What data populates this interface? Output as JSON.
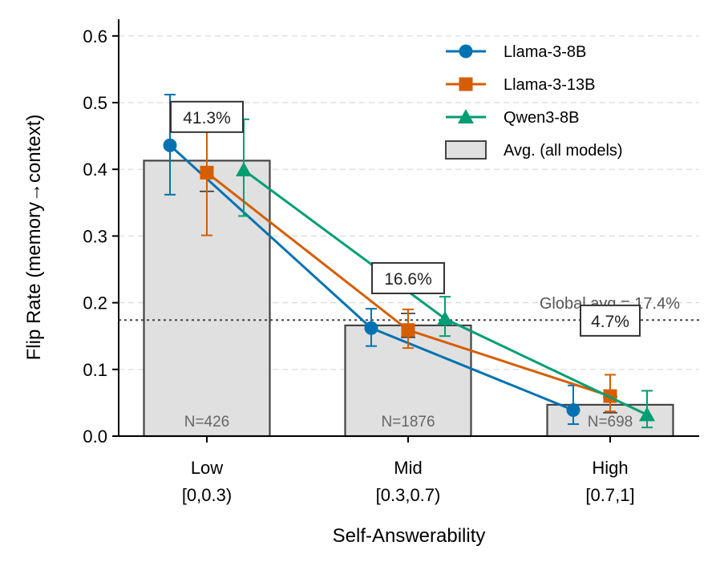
{
  "chart_data": {
    "type": "bar",
    "xlabel": "Self-Answerability",
    "ylabel": "Flip Rate (memory→context)",
    "ylim": [
      0,
      0.625
    ],
    "yticks": [
      "0.0",
      "0.1",
      "0.2",
      "0.3",
      "0.4",
      "0.5",
      "0.6"
    ],
    "yticks_values": [
      0,
      0.1,
      0.2,
      0.3,
      0.4,
      0.5,
      0.6
    ],
    "grid": "horizontal dashed",
    "categories": [
      {
        "name": "Low",
        "range": "[0,0.3)"
      },
      {
        "name": "Mid",
        "range": "[0.3,0.7)"
      },
      {
        "name": "High",
        "range": "[0.7,1]"
      }
    ],
    "avg_bars": {
      "name": "Avg. (all models)",
      "values": [
        0.413,
        0.166,
        0.047
      ],
      "labels": [
        "41.3%",
        "16.6%",
        "4.7%"
      ],
      "counts": [
        "N=426",
        "N=1876",
        "N=698"
      ],
      "err_low": [
        0.367,
        0.148,
        0.035
      ],
      "err_high": [
        0.459,
        0.184,
        0.059
      ],
      "color": "#e0e0e0",
      "edge": "#444444"
    },
    "series": [
      {
        "name": "Llama-3-8B",
        "color": "#0072b2",
        "marker": "circle",
        "values": [
          0.436,
          0.162,
          0.039
        ],
        "err_low": [
          0.362,
          0.135,
          0.018
        ],
        "err_high": [
          0.512,
          0.191,
          0.076
        ]
      },
      {
        "name": "Llama-3-13B",
        "color": "#d55e00",
        "marker": "square",
        "values": [
          0.395,
          0.159,
          0.06
        ],
        "err_low": [
          0.301,
          0.132,
          0.037
        ],
        "err_high": [
          0.498,
          0.19,
          0.092
        ]
      },
      {
        "name": "Qwen3-8B",
        "color": "#009e73",
        "marker": "triangle",
        "values": [
          0.399,
          0.176,
          0.032
        ],
        "err_low": [
          0.33,
          0.15,
          0.013
        ],
        "err_high": [
          0.475,
          0.209,
          0.068
        ]
      }
    ],
    "reference_line": {
      "value": 0.174,
      "label": "Global avg = 17.4%"
    },
    "legend": {
      "position": "top-right"
    }
  }
}
